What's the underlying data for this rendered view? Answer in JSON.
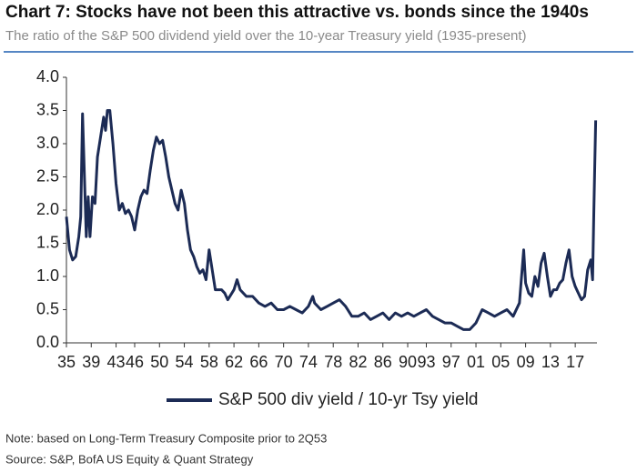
{
  "chart_data": {
    "type": "line",
    "title": "Chart 7: Stocks have not been this attractive vs. bonds since the 1940s",
    "subtitle": "The ratio of the S&P 500 dividend yield over the 10-year Treasury yield (1935-present)",
    "notes": [
      "Note: based on Long-Term Treasury Composite prior to 2Q53",
      "Source: S&P, BofA US Equity & Quant Strategy"
    ],
    "xlim": [
      1935,
      2020.5
    ],
    "ylim": [
      0,
      4
    ],
    "yticks": [
      {
        "value": 0,
        "label": "0.0"
      },
      {
        "value": 0.5,
        "label": "0.5"
      },
      {
        "value": 1,
        "label": "1.0"
      },
      {
        "value": 1.5,
        "label": "1.5"
      },
      {
        "value": 2,
        "label": "2.0"
      },
      {
        "value": 2.5,
        "label": "2.5"
      },
      {
        "value": 3,
        "label": "3.0"
      },
      {
        "value": 3.5,
        "label": "3.5"
      },
      {
        "value": 4,
        "label": "4.0"
      }
    ],
    "xticks": [
      {
        "value": 1935,
        "label": "35"
      },
      {
        "value": 1939,
        "label": "39"
      },
      {
        "value": 1943,
        "label": "43"
      },
      {
        "value": 1946,
        "label": "46"
      },
      {
        "value": 1950,
        "label": "50"
      },
      {
        "value": 1954,
        "label": "54"
      },
      {
        "value": 1958,
        "label": "58"
      },
      {
        "value": 1962,
        "label": "62"
      },
      {
        "value": 1966,
        "label": "66"
      },
      {
        "value": 1970,
        "label": "70"
      },
      {
        "value": 1974,
        "label": "74"
      },
      {
        "value": 1978,
        "label": "78"
      },
      {
        "value": 1982,
        "label": "82"
      },
      {
        "value": 1986,
        "label": "86"
      },
      {
        "value": 1990,
        "label": "90"
      },
      {
        "value": 1993,
        "label": "93"
      },
      {
        "value": 1997,
        "label": "97"
      },
      {
        "value": 2001,
        "label": "01"
      },
      {
        "value": 2005,
        "label": "05"
      },
      {
        "value": 2009,
        "label": "09"
      },
      {
        "value": 2013,
        "label": "13"
      },
      {
        "value": 2017,
        "label": "17"
      }
    ],
    "x": [
      1935.0,
      1935.5,
      1936,
      1936.5,
      1937,
      1937.3,
      1937.6,
      1937.9,
      1938.2,
      1938.5,
      1938.8,
      1939.2,
      1939.6,
      1940,
      1940.5,
      1941,
      1941.3,
      1941.6,
      1942,
      1942.5,
      1943,
      1943.5,
      1944,
      1944.5,
      1945,
      1945.5,
      1946,
      1946.5,
      1947,
      1947.5,
      1948,
      1948.5,
      1949,
      1949.5,
      1950,
      1950.5,
      1951,
      1951.5,
      1952,
      1952.5,
      1953,
      1953.5,
      1954,
      1954.5,
      1955,
      1955.5,
      1956,
      1956.5,
      1957,
      1957.5,
      1958,
      1958.5,
      1959,
      1960,
      1960.5,
      1961,
      1962,
      1962.5,
      1963,
      1964,
      1965,
      1966,
      1967,
      1968,
      1969,
      1970,
      1971,
      1972,
      1973,
      1974,
      1974.7,
      1975,
      1976,
      1977,
      1978,
      1979,
      1980,
      1981,
      1982,
      1983,
      1984,
      1985,
      1986,
      1987,
      1988,
      1989,
      1990,
      1991,
      1992,
      1993,
      1994,
      1995,
      1996,
      1997,
      1998,
      1999,
      2000,
      2001,
      2002,
      2003,
      2004,
      2005,
      2006,
      2007,
      2008,
      2008.7,
      2009,
      2009.5,
      2010,
      2010.5,
      2011,
      2011.5,
      2012,
      2012.5,
      2013,
      2013.5,
      2014,
      2014.5,
      2015,
      2015.5,
      2016,
      2016.5,
      2017,
      2017.5,
      2018,
      2018.5,
      2019,
      2019.5,
      2019.8,
      2020,
      2020.3
    ],
    "series": [
      {
        "name": "S&P 500 div yield / 10-yr Tsy yield",
        "color": "#1c2b55",
        "values": [
          1.9,
          1.4,
          1.25,
          1.3,
          1.6,
          1.9,
          3.45,
          2.5,
          1.6,
          2.2,
          1.6,
          2.2,
          2.1,
          2.8,
          3.1,
          3.4,
          3.2,
          3.5,
          3.5,
          3.0,
          2.4,
          2.0,
          2.1,
          1.95,
          2.0,
          1.9,
          1.7,
          2.0,
          2.2,
          2.3,
          2.25,
          2.6,
          2.9,
          3.1,
          3.0,
          3.05,
          2.8,
          2.5,
          2.3,
          2.1,
          2.0,
          2.3,
          2.1,
          1.7,
          1.4,
          1.3,
          1.15,
          1.05,
          1.1,
          0.95,
          1.4,
          1.1,
          0.8,
          0.8,
          0.75,
          0.65,
          0.8,
          0.95,
          0.8,
          0.7,
          0.7,
          0.6,
          0.55,
          0.6,
          0.5,
          0.5,
          0.55,
          0.5,
          0.45,
          0.55,
          0.7,
          0.6,
          0.5,
          0.55,
          0.6,
          0.65,
          0.55,
          0.4,
          0.4,
          0.45,
          0.35,
          0.4,
          0.45,
          0.35,
          0.45,
          0.4,
          0.45,
          0.4,
          0.45,
          0.5,
          0.4,
          0.35,
          0.3,
          0.3,
          0.25,
          0.2,
          0.2,
          0.3,
          0.5,
          0.45,
          0.4,
          0.45,
          0.5,
          0.4,
          0.6,
          1.4,
          0.9,
          0.75,
          0.7,
          1.0,
          0.85,
          1.2,
          1.35,
          1.0,
          0.7,
          0.8,
          0.8,
          0.9,
          0.95,
          1.2,
          1.4,
          1.0,
          0.85,
          0.75,
          0.65,
          0.7,
          1.1,
          1.25,
          0.95,
          2.0,
          3.35
        ]
      }
    ]
  }
}
